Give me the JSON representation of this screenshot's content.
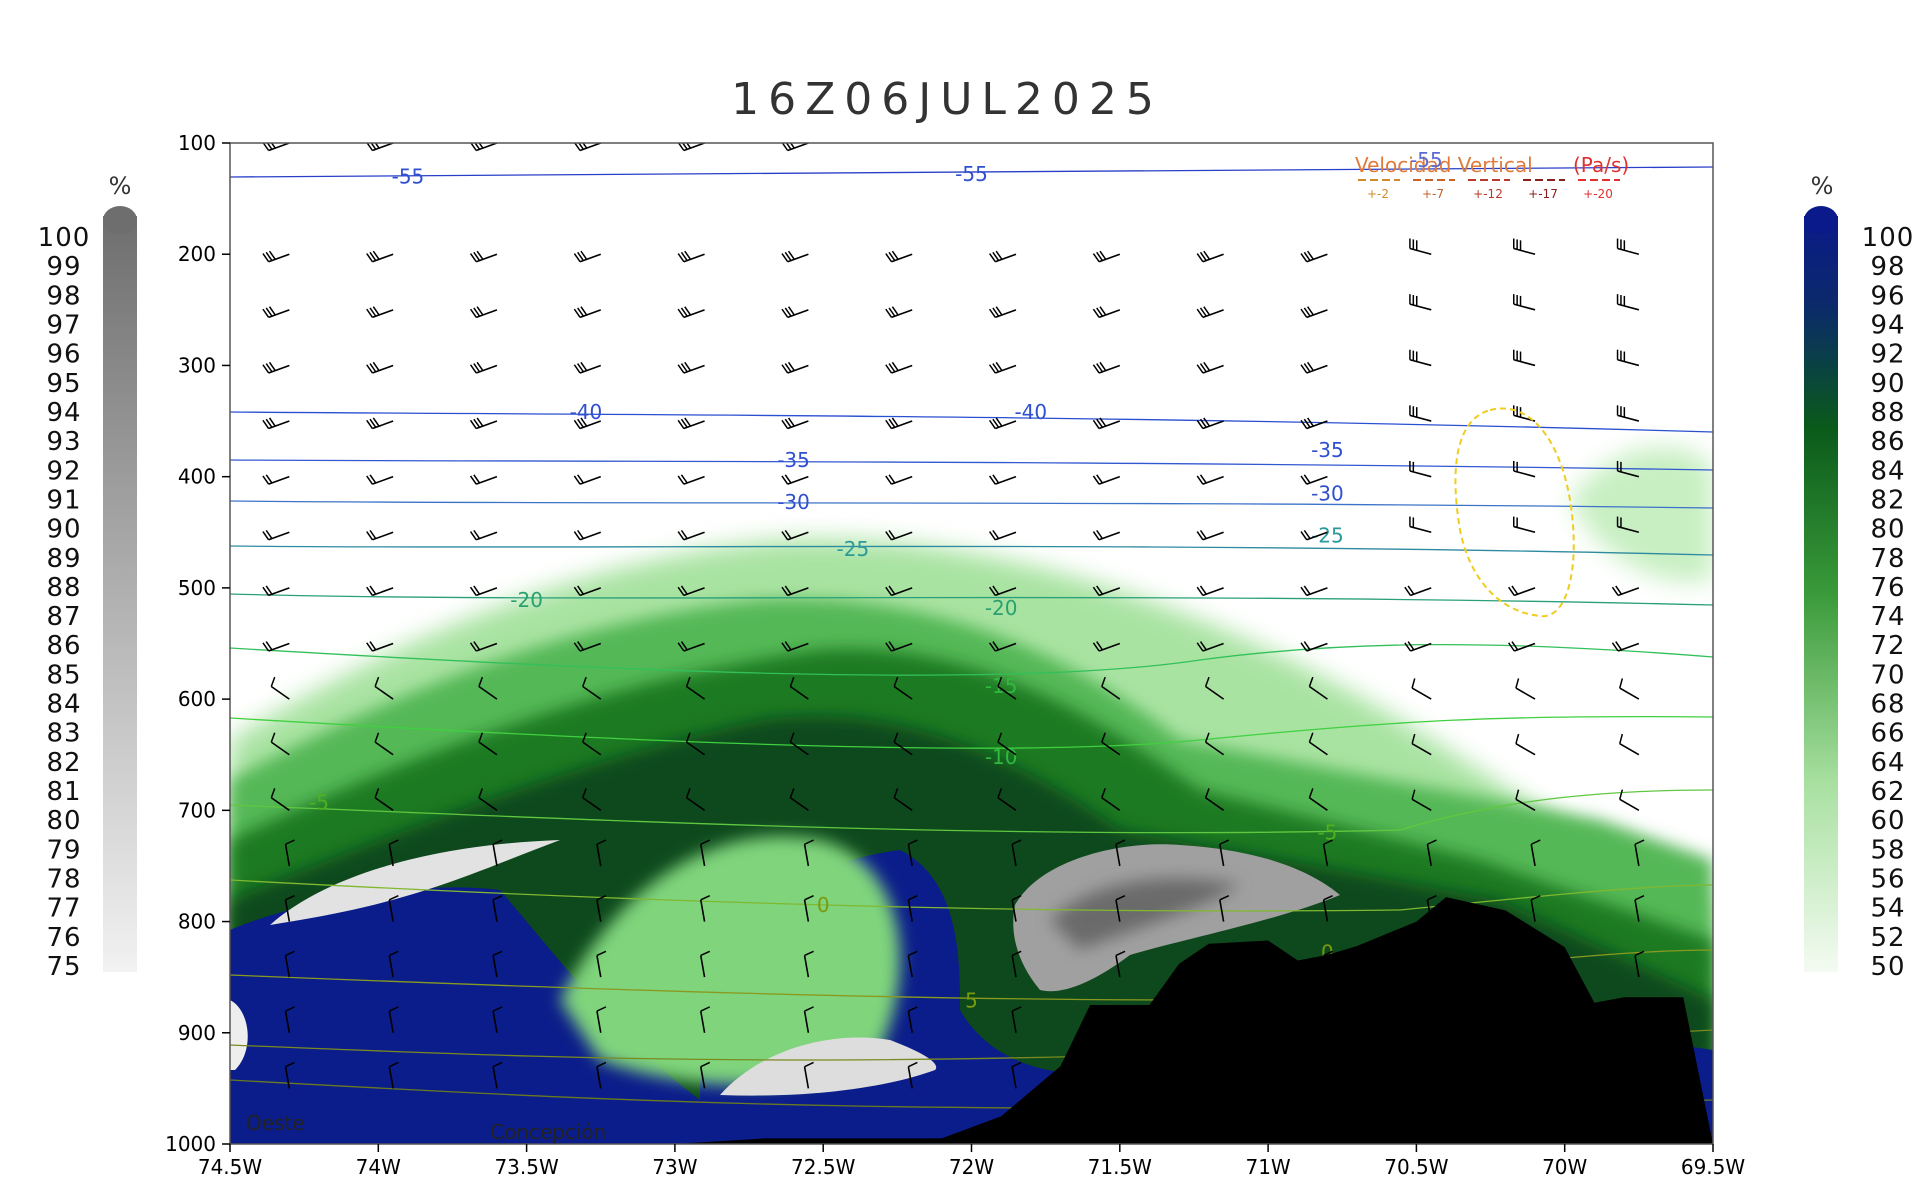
{
  "chart_data": {
    "type": "cross-section",
    "title": "16Z06JUL2025",
    "x_ticks": [
      "74.5W",
      "74W",
      "73.5W",
      "73W",
      "72.5W",
      "72W",
      "71.5W",
      "71W",
      "70.5W",
      "70W",
      "69.5W"
    ],
    "x_range_deg_west": [
      74.5,
      69.5
    ],
    "y_ticks": [
      "100",
      "200",
      "300",
      "400",
      "500",
      "600",
      "700",
      "800",
      "900",
      "1000"
    ],
    "y_range_hpa": [
      100,
      1000
    ],
    "left_colorbar": {
      "unit": "%",
      "colors": "gray",
      "values": [
        "100",
        "99",
        "98",
        "97",
        "96",
        "95",
        "94",
        "93",
        "92",
        "91",
        "90",
        "89",
        "88",
        "87",
        "86",
        "85",
        "84",
        "83",
        "82",
        "81",
        "80",
        "79",
        "78",
        "77",
        "76",
        "75"
      ]
    },
    "right_colorbar": {
      "unit": "%",
      "colors": "white-green-navy",
      "values": [
        "100",
        "98",
        "96",
        "94",
        "92",
        "90",
        "88",
        "86",
        "84",
        "82",
        "80",
        "78",
        "76",
        "74",
        "72",
        "70",
        "68",
        "66",
        "64",
        "62",
        "60",
        "58",
        "56",
        "54",
        "52",
        "50"
      ]
    },
    "isotherm_labels": [
      {
        "text": "-55",
        "lon": 73.9,
        "p": 130
      },
      {
        "text": "-55",
        "lon": 72.0,
        "p": 128
      },
      {
        "text": "-40",
        "lon": 73.3,
        "p": 342
      },
      {
        "text": "-40",
        "lon": 71.8,
        "p": 342
      },
      {
        "text": "-35",
        "lon": 72.6,
        "p": 385
      },
      {
        "text": "-35",
        "lon": 70.8,
        "p": 376
      },
      {
        "text": "-30",
        "lon": 72.6,
        "p": 423
      },
      {
        "text": "-30",
        "lon": 70.8,
        "p": 415
      },
      {
        "text": "-25",
        "lon": 72.4,
        "p": 465
      },
      {
        "text": "-25",
        "lon": 70.8,
        "p": 453
      },
      {
        "text": "-20",
        "lon": 73.5,
        "p": 511
      },
      {
        "text": "-20",
        "lon": 71.9,
        "p": 518
      },
      {
        "text": "-15",
        "lon": 71.9,
        "p": 588
      },
      {
        "text": "-10",
        "lon": 71.9,
        "p": 652
      },
      {
        "text": "-5",
        "lon": 74.2,
        "p": 693
      },
      {
        "text": "-5",
        "lon": 70.8,
        "p": 720
      },
      {
        "text": "0",
        "lon": 72.5,
        "p": 785
      },
      {
        "text": "0",
        "lon": 70.8,
        "p": 828
      },
      {
        "text": "5",
        "lon": 72.0,
        "p": 871
      }
    ],
    "legend": {
      "title_part1": "Velocidad Vertical",
      "title_part2": "(Pa/s)",
      "overlay_label": "-55",
      "entries": [
        "+-2",
        "+-7",
        "+-12",
        "+-17",
        "+-20"
      ],
      "entry_colors": [
        "#d08a2a",
        "#c8602a",
        "#b83a2a",
        "#8a2020",
        "#e03030"
      ]
    },
    "place_labels": {
      "left": "Oeste",
      "center": "Concepción"
    },
    "wind_barb_levels_hpa": [
      100,
      200,
      250,
      300,
      350,
      400,
      450,
      500,
      550,
      600,
      650,
      700,
      750,
      800,
      850,
      900,
      950
    ],
    "terrain_profile": [
      [
        74.5,
        1000
      ],
      [
        73.0,
        1000
      ],
      [
        72.7,
        995
      ],
      [
        72.1,
        995
      ],
      [
        71.9,
        975
      ],
      [
        71.7,
        930
      ],
      [
        71.6,
        875
      ],
      [
        71.4,
        875
      ],
      [
        71.3,
        838
      ],
      [
        71.2,
        820
      ],
      [
        71.0,
        817
      ],
      [
        70.9,
        835
      ],
      [
        70.8,
        830
      ],
      [
        70.7,
        822
      ],
      [
        70.5,
        800
      ],
      [
        70.4,
        778
      ],
      [
        70.2,
        790
      ],
      [
        70.0,
        823
      ],
      [
        69.9,
        873
      ],
      [
        69.8,
        868
      ],
      [
        69.6,
        868
      ],
      [
        69.5,
        1000
      ]
    ]
  }
}
